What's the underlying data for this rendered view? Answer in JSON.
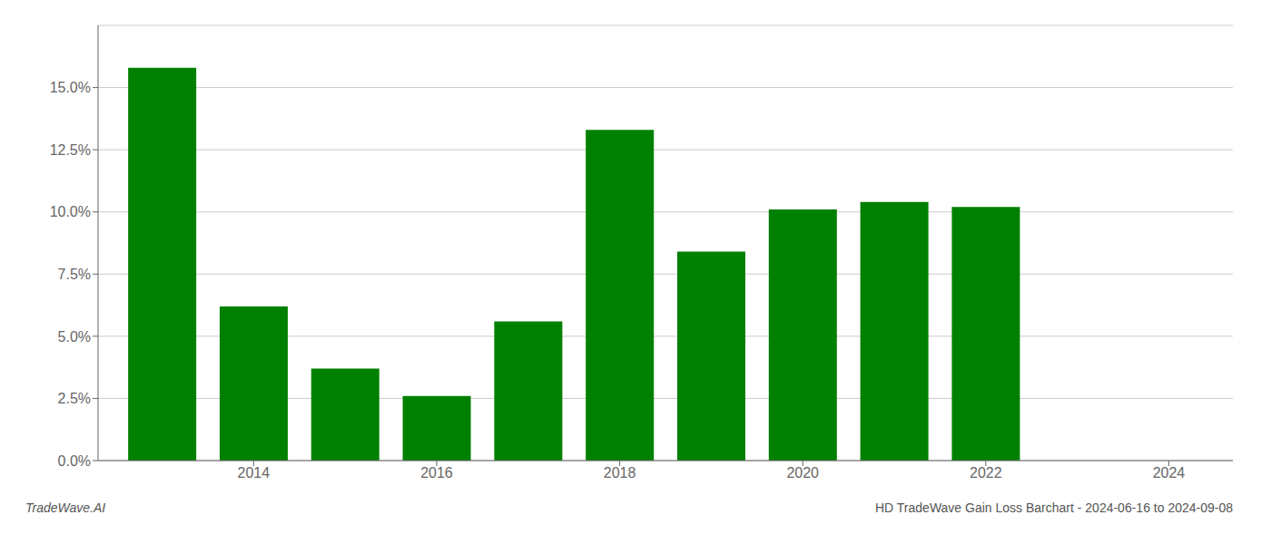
{
  "chart_data": {
    "type": "bar",
    "x": [
      2013,
      2014,
      2015,
      2016,
      2017,
      2018,
      2019,
      2020,
      2021,
      2022,
      2023
    ],
    "values": [
      0.158,
      0.062,
      0.037,
      0.026,
      0.056,
      0.133,
      0.084,
      0.101,
      0.104,
      0.102,
      0.0
    ],
    "color": "#008000",
    "xlim": [
      2012.3,
      2024.7
    ],
    "xticks": [
      2014,
      2016,
      2018,
      2020,
      2022,
      2024
    ],
    "ylim": [
      0,
      0.175
    ],
    "yticks": [
      {
        "value": 0.0,
        "label": "0.0%"
      },
      {
        "value": 0.025,
        "label": "2.5%"
      },
      {
        "value": 0.05,
        "label": "5.0%"
      },
      {
        "value": 0.075,
        "label": "7.5%"
      },
      {
        "value": 0.1,
        "label": "10.0%"
      },
      {
        "value": 0.125,
        "label": "12.5%"
      },
      {
        "value": 0.15,
        "label": "15.0%"
      }
    ],
    "grid": true,
    "annotations": [
      "TradeWave.AI",
      "HD TradeWave Gain Loss Barchart - 2024-06-16 to 2024-09-08"
    ]
  }
}
